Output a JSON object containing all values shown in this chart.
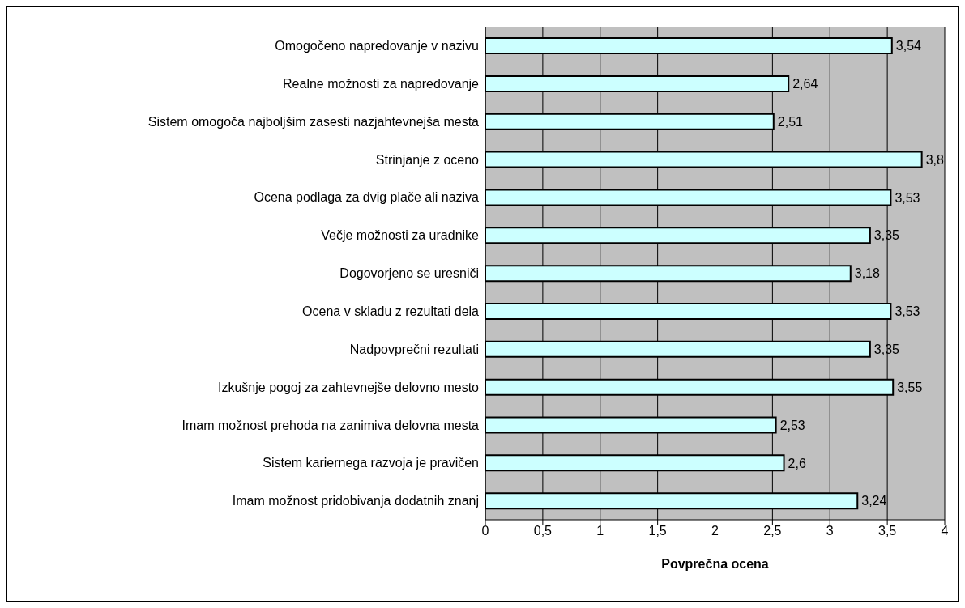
{
  "chart_data": {
    "type": "bar",
    "orientation": "horizontal",
    "xlabel": "Povprečna ocena",
    "categories": [
      "Omogočeno napredovanje v nazivu",
      "Realne možnosti za napredovanje",
      "Sistem omogoča najboljšim zasesti nazjahtevnejša mesta",
      "Strinjanje z oceno",
      "Ocena podlaga za dvig plače ali naziva",
      "Večje možnosti za uradnike",
      "Dogovorjeno se uresniči",
      "Ocena v skladu z rezultati dela",
      "Nadpovprečni rezultati",
      "Izkušnje pogoj za zahtevnejše delovno mesto",
      "Imam možnost prehoda na zanimiva delovna mesta",
      "Sistem kariernega razvoja je pravičen",
      "Imam možnost pridobivanja dodatnih znanj"
    ],
    "values": [
      3.54,
      2.64,
      2.51,
      3.8,
      3.53,
      3.35,
      3.18,
      3.53,
      3.35,
      3.55,
      2.53,
      2.6,
      3.24
    ],
    "value_labels": [
      "3,54",
      "2,64",
      "2,51",
      "3,8",
      "3,53",
      "3,35",
      "3,18",
      "3,53",
      "3,35",
      "3,55",
      "2,53",
      "2,6",
      "3,24"
    ],
    "color": "#ccffff",
    "xlim": [
      0,
      4
    ],
    "xticks": [
      0,
      {
        "value": 0.5,
        "label": "0,5"
      },
      1,
      {
        "value": 1.5,
        "label": "1,5"
      },
      2,
      {
        "value": 2.5,
        "label": "2,5"
      },
      3,
      {
        "value": 3.5,
        "label": "3,5"
      },
      4
    ],
    "grid": "x"
  }
}
